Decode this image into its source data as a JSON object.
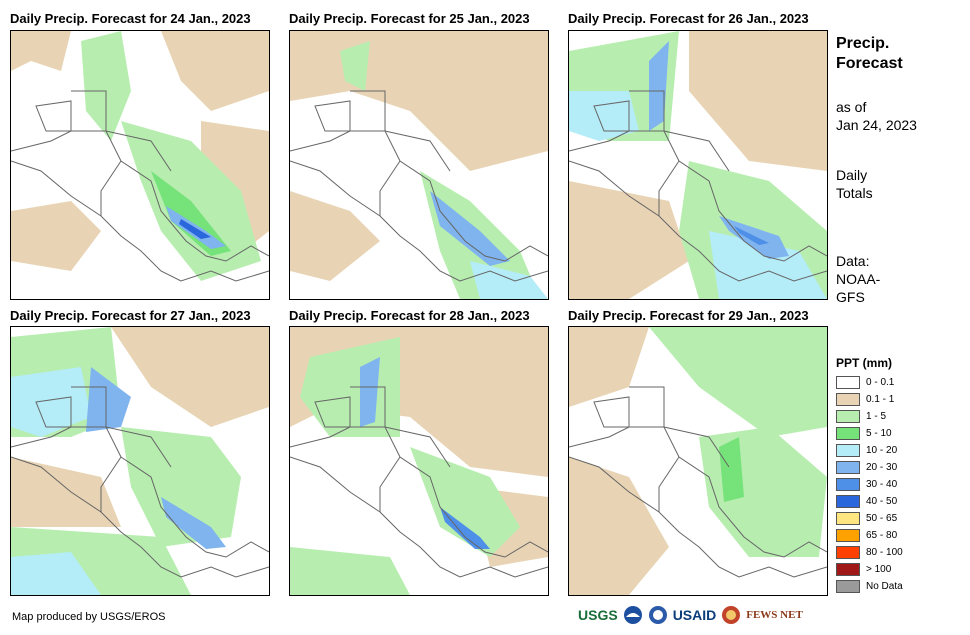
{
  "panels": [
    {
      "title": "Daily Precip. Forecast for 24 Jan., 2023"
    },
    {
      "title": "Daily Precip. Forecast for 25 Jan., 2023"
    },
    {
      "title": "Daily Precip. Forecast for 26 Jan., 2023"
    },
    {
      "title": "Daily Precip. Forecast for 27 Jan., 2023"
    },
    {
      "title": "Daily Precip. Forecast for 28 Jan., 2023"
    },
    {
      "title": "Daily Precip. Forecast for 29 Jan., 2023"
    }
  ],
  "side": {
    "title_line1": "Precip.",
    "title_line2": "Forecast",
    "asof_line1": "as of",
    "asof_line2": "Jan 24, 2023",
    "totals_line1": "Daily",
    "totals_line2": "Totals",
    "data_line1": "Data:",
    "data_line2": "NOAA-",
    "data_line3": "GFS"
  },
  "legend": {
    "title": "PPT (mm)",
    "items": [
      {
        "label": "0 - 0.1",
        "color": "#ffffff"
      },
      {
        "label": "0.1 - 1",
        "color": "#e8d4b4"
      },
      {
        "label": "1 - 5",
        "color": "#b7eeb0"
      },
      {
        "label": "5 - 10",
        "color": "#76e27a"
      },
      {
        "label": "10 - 20",
        "color": "#b4ecf8"
      },
      {
        "label": "20 - 30",
        "color": "#7fb4ee"
      },
      {
        "label": "30 - 40",
        "color": "#4e8fe8"
      },
      {
        "label": "40 - 50",
        "color": "#2a66dc"
      },
      {
        "label": "50 - 65",
        "color": "#ffe680"
      },
      {
        "label": "65 - 80",
        "color": "#ffa200"
      },
      {
        "label": "80 - 100",
        "color": "#ff4000"
      },
      {
        "label": "> 100",
        "color": "#a01818"
      },
      {
        "label": "No Data",
        "color": "#9a9a9a"
      }
    ]
  },
  "footer": {
    "credit": "Map produced by USGS/EROS"
  },
  "logos": {
    "usgs": "USGS",
    "usaid": "USAID",
    "fewsnet": "FEWS NET"
  }
}
